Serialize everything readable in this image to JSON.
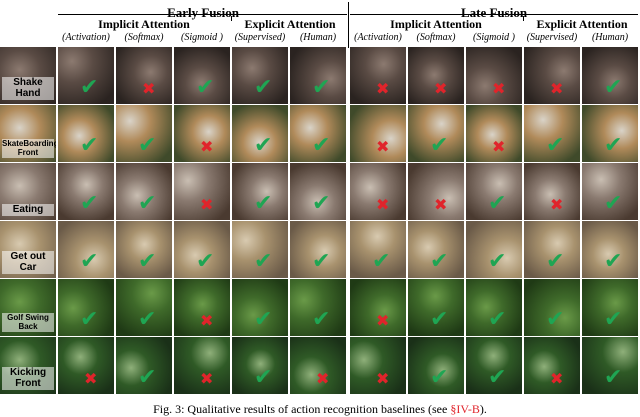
{
  "header": {
    "early_fusion": "Early Fusion",
    "late_fusion": "Late Fusion",
    "implicit": "Implicit Attention",
    "explicit": "Explicit Attention",
    "methods": [
      "(Activation)",
      "(Softmax)",
      "(Sigmoid )",
      "(Supervised)",
      "(Human)"
    ]
  },
  "rows": [
    {
      "label": "Shake Hand",
      "marks": [
        "ok",
        "bad",
        "ok",
        "ok",
        "ok",
        "bad",
        "bad",
        "bad",
        "bad",
        "ok"
      ],
      "scene": [
        "#2a2320",
        "#5a4b44",
        "#8c7a70"
      ]
    },
    {
      "label": "SkateBoarding Front",
      "marks": [
        "ok",
        "ok",
        "bad",
        "ok",
        "ok",
        "bad",
        "ok",
        "bad",
        "ok",
        "ok"
      ],
      "scene": [
        "#3f4a2a",
        "#b08a5a",
        "#d9d3c8"
      ]
    },
    {
      "label": "Eating",
      "marks": [
        "ok",
        "ok",
        "bad",
        "ok",
        "ok",
        "bad",
        "bad",
        "ok",
        "bad",
        "ok"
      ],
      "scene": [
        "#4a3a30",
        "#8a7a70",
        "#c9beb2"
      ]
    },
    {
      "label": "Get out Car",
      "marks": [
        "ok",
        "ok",
        "ok",
        "ok",
        "ok",
        "ok",
        "ok",
        "ok",
        "ok",
        "ok"
      ],
      "scene": [
        "#6a5a48",
        "#a8926e",
        "#d8cab0"
      ]
    },
    {
      "label": "Golf Swing Back",
      "marks": [
        "ok",
        "ok",
        "bad",
        "ok",
        "ok",
        "bad",
        "ok",
        "ok",
        "ok",
        "ok"
      ],
      "scene": [
        "#1f3a15",
        "#3f6a2a",
        "#6a9a48"
      ]
    },
    {
      "label": "Kicking Front",
      "marks": [
        "bad",
        "ok",
        "bad",
        "ok",
        "bad",
        "bad",
        "ok",
        "ok",
        "bad",
        "ok"
      ],
      "scene": [
        "#1a3018",
        "#2f5a26",
        "#8fb07a"
      ]
    }
  ],
  "caption": {
    "prefix": "Fig. 3: ",
    "text": "Qualitative results of action recognition baselines (see ",
    "ref": "§IV-B",
    "suffix": ")."
  },
  "marks_legend": {
    "ok": "✔",
    "bad": "✖"
  },
  "colors": {
    "ok": "#1fa553",
    "bad": "#e0242b"
  }
}
